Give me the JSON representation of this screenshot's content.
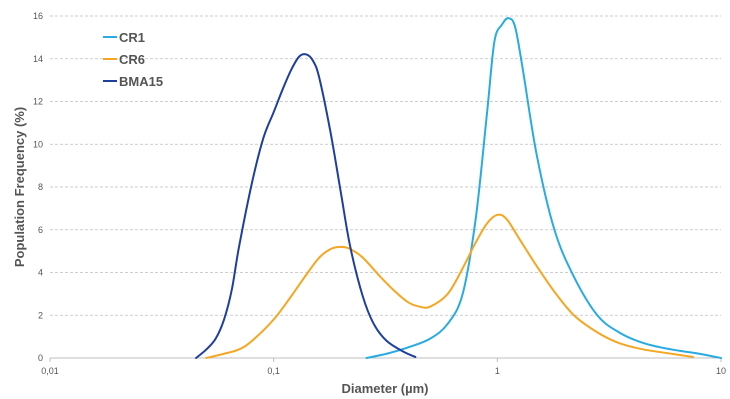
{
  "chart_data": {
    "type": "line",
    "xlabel": "Diameter (µm)",
    "ylabel": "Population Frequency (%)",
    "x_scale": "log",
    "xlim": [
      0.01,
      10
    ],
    "ylim": [
      0,
      16
    ],
    "x_ticks": [
      {
        "value": 0.01,
        "label": "0,01"
      },
      {
        "value": 0.1,
        "label": "0,1"
      },
      {
        "value": 1,
        "label": "1"
      },
      {
        "value": 10,
        "label": "10"
      }
    ],
    "y_ticks": [
      0,
      2,
      4,
      6,
      8,
      10,
      12,
      14,
      16
    ],
    "grid": true,
    "legend_position": "top-left",
    "series": [
      {
        "name": "CR1",
        "color": "#29abe2",
        "points": [
          [
            0.26,
            0
          ],
          [
            0.32,
            0.2
          ],
          [
            0.4,
            0.5
          ],
          [
            0.5,
            0.9
          ],
          [
            0.6,
            1.6
          ],
          [
            0.7,
            3.0
          ],
          [
            0.8,
            6.5
          ],
          [
            0.9,
            11.5
          ],
          [
            0.97,
            14.8
          ],
          [
            1.05,
            15.6
          ],
          [
            1.12,
            15.9
          ],
          [
            1.2,
            15.5
          ],
          [
            1.3,
            13.5
          ],
          [
            1.5,
            9.5
          ],
          [
            1.8,
            6.0
          ],
          [
            2.2,
            3.8
          ],
          [
            2.8,
            2.0
          ],
          [
            3.5,
            1.2
          ],
          [
            4.5,
            0.7
          ],
          [
            6,
            0.4
          ],
          [
            8,
            0.2
          ],
          [
            10,
            0
          ]
        ]
      },
      {
        "name": "CR6",
        "color": "#f5a623",
        "points": [
          [
            0.05,
            0
          ],
          [
            0.06,
            0.2
          ],
          [
            0.07,
            0.4
          ],
          [
            0.08,
            0.8
          ],
          [
            0.1,
            1.8
          ],
          [
            0.12,
            2.9
          ],
          [
            0.14,
            3.9
          ],
          [
            0.16,
            4.7
          ],
          [
            0.18,
            5.1
          ],
          [
            0.2,
            5.2
          ],
          [
            0.22,
            5.1
          ],
          [
            0.25,
            4.7
          ],
          [
            0.3,
            3.8
          ],
          [
            0.35,
            3.1
          ],
          [
            0.4,
            2.6
          ],
          [
            0.45,
            2.4
          ],
          [
            0.5,
            2.4
          ],
          [
            0.6,
            3.0
          ],
          [
            0.7,
            4.2
          ],
          [
            0.8,
            5.4
          ],
          [
            0.9,
            6.3
          ],
          [
            1.0,
            6.7
          ],
          [
            1.1,
            6.5
          ],
          [
            1.25,
            5.6
          ],
          [
            1.5,
            4.3
          ],
          [
            1.8,
            3.1
          ],
          [
            2.2,
            2.0
          ],
          [
            2.8,
            1.2
          ],
          [
            3.5,
            0.7
          ],
          [
            4.5,
            0.4
          ],
          [
            6,
            0.2
          ],
          [
            7.5,
            0.05
          ]
        ]
      },
      {
        "name": "BMA15",
        "color": "#1f3f9e",
        "points": [
          [
            0.045,
            0
          ],
          [
            0.05,
            0.4
          ],
          [
            0.055,
            0.9
          ],
          [
            0.06,
            1.8
          ],
          [
            0.065,
            3.2
          ],
          [
            0.07,
            5.2
          ],
          [
            0.08,
            8.2
          ],
          [
            0.09,
            10.3
          ],
          [
            0.1,
            11.5
          ],
          [
            0.11,
            12.6
          ],
          [
            0.12,
            13.5
          ],
          [
            0.13,
            14.1
          ],
          [
            0.14,
            14.2
          ],
          [
            0.15,
            13.9
          ],
          [
            0.16,
            13.1
          ],
          [
            0.18,
            10.5
          ],
          [
            0.2,
            7.7
          ],
          [
            0.22,
            5.2
          ],
          [
            0.25,
            2.9
          ],
          [
            0.28,
            1.6
          ],
          [
            0.32,
            0.8
          ],
          [
            0.38,
            0.3
          ],
          [
            0.43,
            0.05
          ]
        ]
      }
    ]
  }
}
